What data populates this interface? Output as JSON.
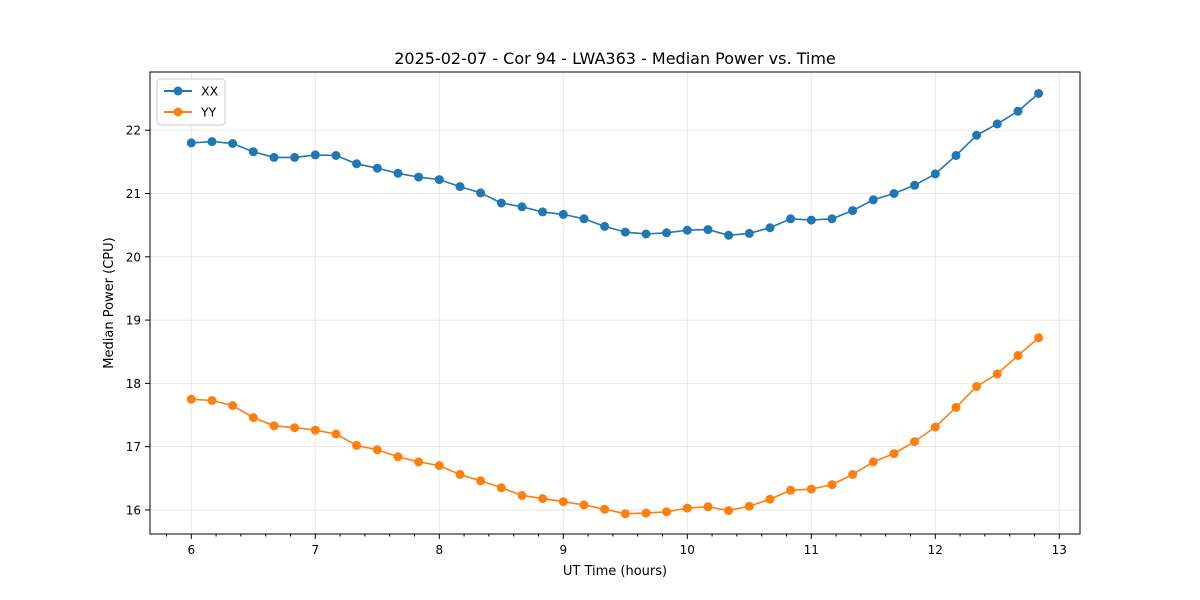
{
  "chart_data": {
    "type": "line",
    "title": "2025-02-07 - Cor 94 - LWA363 - Median Power vs. Time",
    "xlabel": "UT Time (hours)",
    "ylabel": "Median Power (CPU)",
    "xlim": [
      5.667,
      13.167
    ],
    "ylim": [
      15.62,
      22.92
    ],
    "xticks": [
      6,
      7,
      8,
      9,
      10,
      11,
      12,
      13
    ],
    "yticks": [
      16,
      17,
      18,
      19,
      20,
      21,
      22
    ],
    "minor_x_step": 0.2,
    "grid": true,
    "legend_position": "upper-left",
    "x": [
      6.0,
      6.167,
      6.333,
      6.5,
      6.667,
      6.833,
      7.0,
      7.167,
      7.333,
      7.5,
      7.667,
      7.833,
      8.0,
      8.167,
      8.333,
      8.5,
      8.667,
      8.833,
      9.0,
      9.167,
      9.333,
      9.5,
      9.667,
      9.833,
      10.0,
      10.167,
      10.333,
      10.5,
      10.667,
      10.833,
      11.0,
      11.167,
      11.333,
      11.5,
      11.667,
      11.833,
      12.0,
      12.167,
      12.333,
      12.5,
      12.667,
      12.833
    ],
    "series": [
      {
        "name": "XX",
        "color": "#1f77b4",
        "values": [
          21.8,
          21.82,
          21.79,
          21.66,
          21.57,
          21.57,
          21.61,
          21.6,
          21.47,
          21.4,
          21.32,
          21.26,
          21.22,
          21.11,
          21.01,
          20.85,
          20.79,
          20.71,
          20.67,
          20.6,
          20.48,
          20.39,
          20.36,
          20.38,
          20.42,
          20.43,
          20.34,
          20.37,
          20.46,
          20.6,
          20.58,
          20.6,
          20.73,
          20.9,
          21.0,
          21.13,
          21.31,
          21.6,
          21.92,
          22.1,
          22.3,
          22.58
        ]
      },
      {
        "name": "YY",
        "color": "#ff7f0e",
        "values": [
          17.75,
          17.73,
          17.65,
          17.46,
          17.33,
          17.3,
          17.26,
          17.2,
          17.02,
          16.95,
          16.84,
          16.76,
          16.7,
          16.56,
          16.46,
          16.35,
          16.23,
          16.18,
          16.13,
          16.08,
          16.01,
          15.94,
          15.95,
          15.97,
          16.03,
          16.05,
          15.99,
          16.06,
          16.17,
          16.31,
          16.33,
          16.4,
          16.56,
          16.76,
          16.89,
          17.08,
          17.31,
          17.62,
          17.95,
          18.15,
          18.44,
          18.72
        ]
      }
    ]
  }
}
